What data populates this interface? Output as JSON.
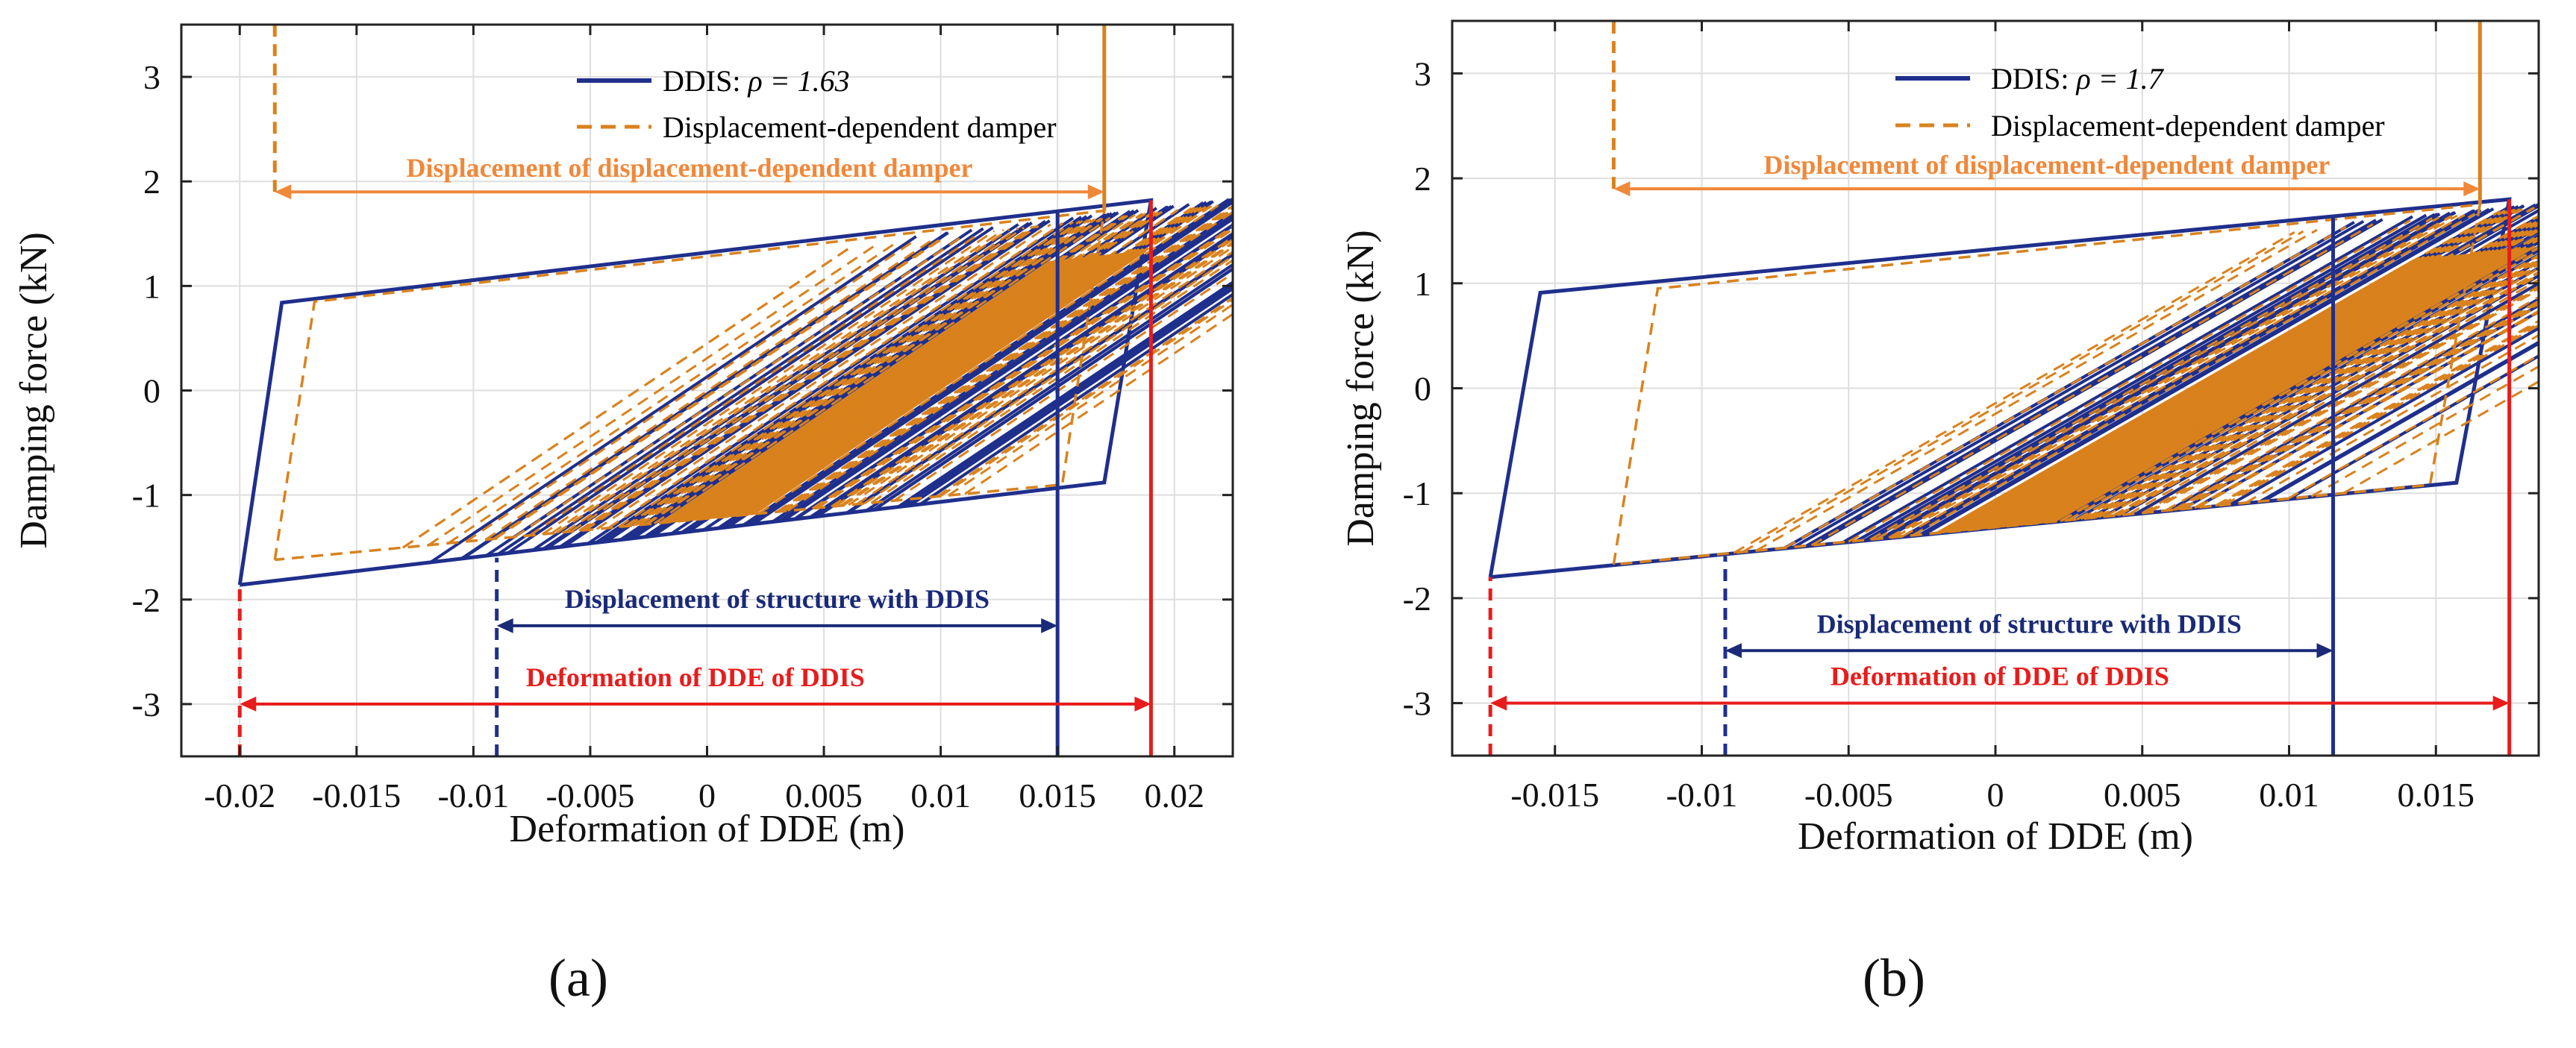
{
  "chart_data": [
    {
      "panel_label": "(a)",
      "type": "line",
      "xlabel": "Deformation of DDE (m)",
      "ylabel": "Damping force (kN)",
      "xlim": [
        -0.0225,
        0.0225
      ],
      "ylim": [
        -3.5,
        3.5
      ],
      "xticks": [
        -0.02,
        -0.015,
        -0.01,
        -0.005,
        0,
        0.005,
        0.01,
        0.015,
        0.02
      ],
      "xtick_labels": [
        "-0.02",
        "-0.015",
        "-0.01",
        "-0.005",
        "0",
        "0.005",
        "0.01",
        "0.015",
        "0.02"
      ],
      "yticks": [
        -3,
        -2,
        -1,
        0,
        1,
        2,
        3
      ],
      "ytick_labels": [
        "-3",
        "-2",
        "-1",
        "0",
        "1",
        "2",
        "3"
      ],
      "grid": true,
      "legend_position": "top-right",
      "series": [
        {
          "name": "DDIS",
          "rho": "1.63",
          "legend_text": "DDIS: ",
          "legend_math": "ρ = 1.63",
          "color": "#1f2f8c",
          "style": "solid",
          "envelope": {
            "x": [
              -0.02,
              -0.0182,
              0.019,
              0.017,
              -0.02
            ],
            "y": [
              -1.86,
              0.84,
              1.82,
              -0.88,
              -1.86
            ]
          },
          "loading_stiffness_kN_per_m": 150,
          "segment_count": 60
        },
        {
          "name": "Displacement-dependent damper",
          "color": "#d9821e",
          "style": "dashed",
          "envelope": {
            "x": [
              -0.0185,
              -0.0168,
              0.017,
              0.0152,
              -0.0185
            ],
            "y": [
              -1.62,
              0.85,
              1.72,
              -0.9,
              -1.62
            ]
          },
          "loading_stiffness_kN_per_m": 150,
          "segment_count": 90
        }
      ],
      "annotations": [
        {
          "text": "Displacement of displacement-dependent damper",
          "color": "#f0883a",
          "x_from": -0.0185,
          "x_to": 0.017,
          "y": 1.9
        },
        {
          "text": "Displacement of structure with DDIS",
          "color": "#1a2a78",
          "x_from": -0.009,
          "x_to": 0.015,
          "y": -2.25
        },
        {
          "text": "Deformation of DDE of DDIS",
          "color": "#e81c1c",
          "x_from": -0.02,
          "x_to": 0.019,
          "y": -3.0
        }
      ],
      "reference_lines": [
        {
          "series": "damper",
          "x": -0.0185,
          "style": "dashed",
          "color": "#d9821e",
          "y_from": 1.9,
          "y_to": 3.5
        },
        {
          "series": "damper",
          "x": 0.017,
          "style": "solid",
          "color": "#d9821e",
          "y_from": 1.72,
          "y_to": 3.5
        },
        {
          "series": "structure",
          "x": -0.009,
          "style": "dashed",
          "color": "#1f2f8c",
          "y_from": -3.5,
          "y_to": -1.6
        },
        {
          "series": "structure",
          "x": 0.015,
          "style": "solid",
          "color": "#1f2f8c",
          "y_from": -3.5,
          "y_to": 1.7
        },
        {
          "series": "dde",
          "x": -0.02,
          "style": "dashed",
          "color": "#e81c1c",
          "y_from": -3.5,
          "y_to": -1.86
        },
        {
          "series": "dde",
          "x": 0.019,
          "style": "solid",
          "color": "#e81c1c",
          "y_from": -3.5,
          "y_to": 1.82
        }
      ]
    },
    {
      "panel_label": "(b)",
      "type": "line",
      "xlabel": "Deformation of DDE (m)",
      "ylabel": "Damping force (kN)",
      "xlim": [
        -0.0185,
        0.0185
      ],
      "ylim": [
        -3.5,
        3.5
      ],
      "xticks": [
        -0.015,
        -0.01,
        -0.005,
        0,
        0.005,
        0.01,
        0.015
      ],
      "xtick_labels": [
        "-0.015",
        "-0.01",
        "-0.005",
        "0",
        "0.005",
        "0.01",
        "0.015"
      ],
      "yticks": [
        -3,
        -2,
        -1,
        0,
        1,
        2,
        3
      ],
      "ytick_labels": [
        "-3",
        "-2",
        "-1",
        "0",
        "1",
        "2",
        "3"
      ],
      "grid": true,
      "legend_position": "top-right",
      "series": [
        {
          "name": "DDIS",
          "rho": "1.7",
          "legend_text": "DDIS: ",
          "legend_math": "ρ = 1.7",
          "color": "#1f2f8c",
          "style": "solid",
          "envelope": {
            "x": [
              -0.0172,
              -0.0155,
              0.0175,
              0.0157,
              -0.0172
            ],
            "y": [
              -1.8,
              0.91,
              1.8,
              -0.9,
              -1.8
            ]
          },
          "loading_stiffness_kN_per_m": 160,
          "segment_count": 60
        },
        {
          "name": "Displacement-dependent damper",
          "color": "#d9821e",
          "style": "dashed",
          "envelope": {
            "x": [
              -0.013,
              -0.0115,
              0.0165,
              0.0148,
              -0.013
            ],
            "y": [
              -1.68,
              0.95,
              1.75,
              -0.92,
              -1.68
            ]
          },
          "loading_stiffness_kN_per_m": 160,
          "segment_count": 90
        }
      ],
      "annotations": [
        {
          "text": "Displacement of displacement-dependent damper",
          "color": "#f0883a",
          "x_from": -0.013,
          "x_to": 0.0165,
          "y": 1.9
        },
        {
          "text": "Displacement of structure with DDIS",
          "color": "#1a2a78",
          "x_from": -0.0092,
          "x_to": 0.0115,
          "y": -2.5
        },
        {
          "text": "Deformation of DDE of DDIS",
          "color": "#e81c1c",
          "x_from": -0.0172,
          "x_to": 0.0175,
          "y": -3.0
        }
      ],
      "reference_lines": [
        {
          "series": "damper",
          "x": -0.013,
          "style": "dashed",
          "color": "#d9821e",
          "y_from": 1.9,
          "y_to": 3.5
        },
        {
          "series": "damper",
          "x": 0.0165,
          "style": "solid",
          "color": "#d9821e",
          "y_from": 1.75,
          "y_to": 3.5
        },
        {
          "series": "structure",
          "x": -0.0092,
          "style": "dashed",
          "color": "#1f2f8c",
          "y_from": -3.5,
          "y_to": -1.6
        },
        {
          "series": "structure",
          "x": 0.0115,
          "style": "solid",
          "color": "#1f2f8c",
          "y_from": -3.5,
          "y_to": 1.65
        },
        {
          "series": "dde",
          "x": -0.0172,
          "style": "dashed",
          "color": "#e81c1c",
          "y_from": -3.5,
          "y_to": -1.8
        },
        {
          "series": "dde",
          "x": 0.0175,
          "style": "solid",
          "color": "#e81c1c",
          "y_from": -3.5,
          "y_to": 1.8
        }
      ]
    }
  ]
}
